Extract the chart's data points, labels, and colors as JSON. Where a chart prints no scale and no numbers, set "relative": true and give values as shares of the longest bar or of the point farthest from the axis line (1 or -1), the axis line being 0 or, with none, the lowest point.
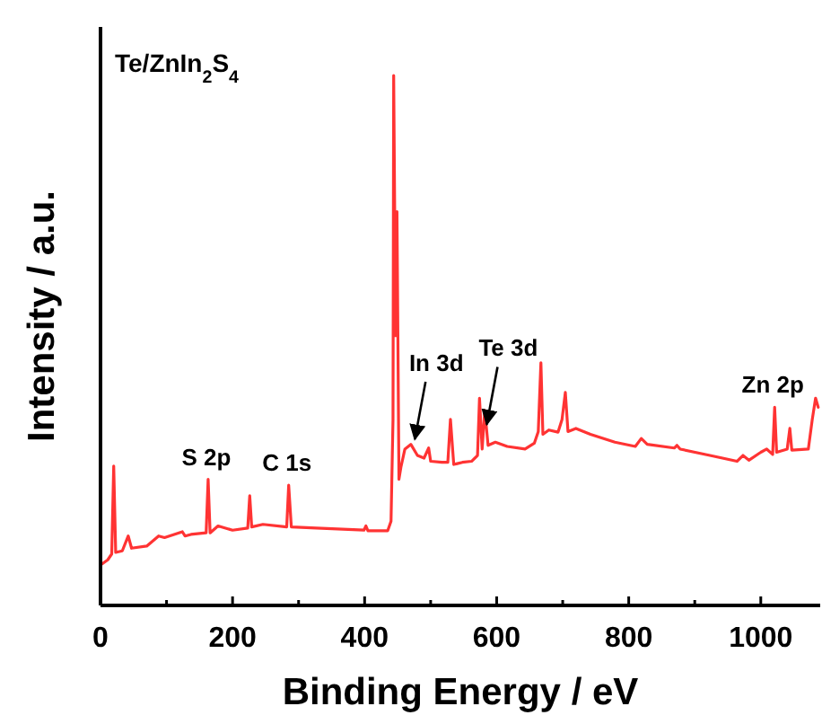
{
  "chart_data": {
    "type": "line",
    "title": "Te/ZnIn$_{2}$S$_{4}$",
    "xlabel": "Binding Energy / eV",
    "ylabel": "Intensity / a.u.",
    "relative": true,
    "color": "#ff3333",
    "xlim": [
      0,
      1090
    ],
    "xticks": [
      0,
      {
        "value": 100,
        "label": null
      },
      200,
      {
        "value": 300,
        "label": null
      },
      400,
      {
        "value": 500,
        "label": null
      },
      600,
      {
        "value": 700,
        "label": null
      },
      800,
      {
        "value": 900,
        "label": null
      },
      1000
    ],
    "x": [
      2,
      11,
      17,
      20,
      23,
      33,
      42,
      47,
      70,
      88,
      97,
      124,
      128,
      137,
      160,
      163,
      166,
      178,
      200,
      223,
      226,
      229,
      246,
      282,
      285,
      289,
      327,
      399,
      402,
      405,
      435,
      440,
      443,
      444,
      447,
      449,
      452,
      455,
      461,
      470,
      480,
      490,
      497,
      500,
      517,
      526,
      530,
      535,
      548,
      562,
      571,
      574,
      578,
      582,
      587,
      598,
      616,
      643,
      657,
      663,
      667,
      670,
      679,
      693,
      699,
      704,
      708,
      720,
      742,
      779,
      810,
      819,
      828,
      869,
      873,
      878,
      923,
      964,
      973,
      982,
      1000,
      1009,
      1018,
      1021,
      1024,
      1040,
      1044,
      1047,
      1072,
      1078,
      1083,
      1087
    ],
    "values": [
      0.078,
      0.086,
      0.097,
      0.263,
      0.1,
      0.103,
      0.131,
      0.108,
      0.112,
      0.131,
      0.128,
      0.139,
      0.131,
      0.134,
      0.137,
      0.238,
      0.137,
      0.15,
      0.142,
      0.146,
      0.207,
      0.148,
      0.153,
      0.148,
      0.227,
      0.148,
      0.146,
      0.142,
      0.15,
      0.141,
      0.141,
      0.159,
      0.351,
      1.0,
      0.509,
      0.743,
      0.238,
      0.261,
      0.295,
      0.304,
      0.283,
      0.278,
      0.297,
      0.272,
      0.27,
      0.27,
      0.351,
      0.266,
      0.27,
      0.272,
      0.283,
      0.391,
      0.295,
      0.368,
      0.302,
      0.308,
      0.3,
      0.295,
      0.306,
      0.328,
      0.458,
      0.323,
      0.331,
      0.327,
      0.351,
      0.402,
      0.328,
      0.334,
      0.323,
      0.308,
      0.3,
      0.315,
      0.304,
      0.297,
      0.302,
      0.295,
      0.283,
      0.272,
      0.283,
      0.274,
      0.289,
      0.295,
      0.285,
      0.374,
      0.289,
      0.295,
      0.334,
      0.293,
      0.295,
      0.351,
      0.391,
      0.374
    ],
    "annotations": [
      {
        "text": "S 2p",
        "x": 163,
        "y": 0.238
      },
      {
        "text": "C 1s",
        "x": 285,
        "y": 0.227
      },
      {
        "text": "In 3d",
        "x": 476,
        "y": 0.3
      },
      {
        "text": "Te 3d",
        "x": 585,
        "y": 0.328
      },
      {
        "text": "Zn 2p",
        "x": 1021,
        "y": 0.374
      }
    ],
    "grid": false,
    "legend": false
  }
}
